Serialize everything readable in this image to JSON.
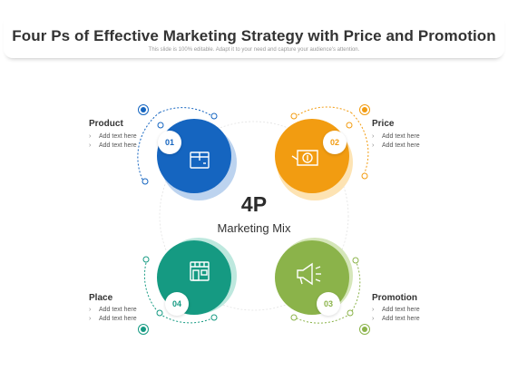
{
  "title": "Four Ps of Effective Marketing Strategy with Price and Promotion",
  "subtitle": "This slide is 100% editable. Adapt it to your need and capture your audience's attention.",
  "center": {
    "big": "4P",
    "small": "Marketing Mix"
  },
  "quadrants": [
    {
      "name": "Product",
      "number": "01",
      "bullets": [
        "Add text here",
        "Add text here"
      ],
      "color": "#1565c0",
      "icon": "box-icon"
    },
    {
      "name": "Price",
      "number": "02",
      "bullets": [
        "Add text here",
        "Add text here"
      ],
      "color": "#f29c11",
      "icon": "money-icon"
    },
    {
      "name": "Promotion",
      "number": "03",
      "bullets": [
        "Add text here",
        "Add text here"
      ],
      "color": "#8bb34a",
      "icon": "megaphone-icon"
    },
    {
      "name": "Place",
      "number": "04",
      "bullets": [
        "Add text here",
        "Add text here"
      ],
      "color": "#159a82",
      "icon": "store-icon"
    }
  ]
}
